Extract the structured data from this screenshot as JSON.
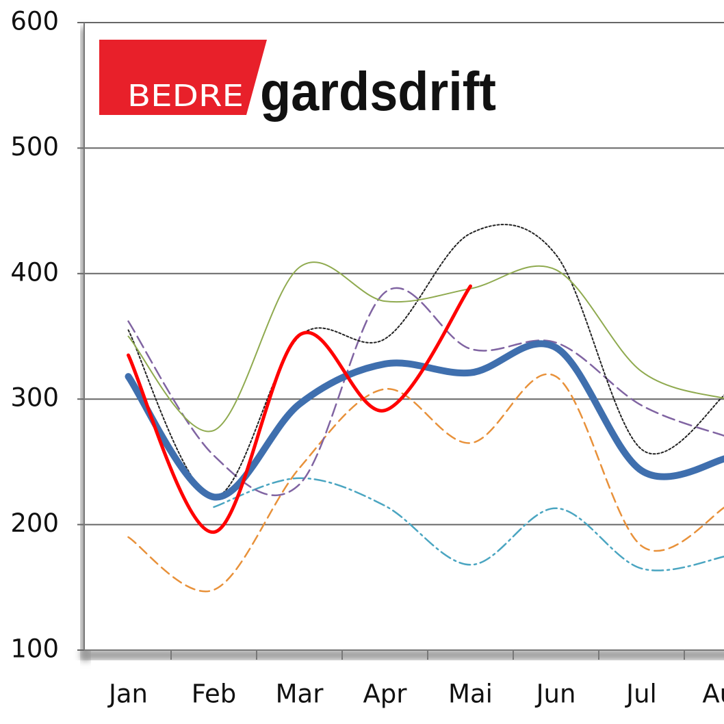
{
  "logo": {
    "left": "BEDRE",
    "right": "gardsdrift"
  },
  "chart_data": {
    "type": "line",
    "categories": [
      "Jan",
      "Feb",
      "Mar",
      "Apr",
      "Mai",
      "Jun",
      "Jul",
      "Aug"
    ],
    "ylim": [
      100,
      600
    ],
    "yticks": [
      100,
      200,
      300,
      400,
      500,
      600
    ],
    "grid": true,
    "series": [
      {
        "color": "#e8913a",
        "dash": "14,8",
        "width": 2.5,
        "values": [
          190,
          148,
          245,
          308,
          265,
          318,
          183,
          215
        ]
      },
      {
        "color": "#4aa5c1",
        "dash": "16,6,3,6",
        "width": 2.5,
        "values": [
          null,
          214,
          237,
          215,
          168,
          213,
          165,
          175
        ]
      },
      {
        "color": "#8064a2",
        "dash": "18,8",
        "width": 2.5,
        "values": [
          362,
          255,
          232,
          385,
          340,
          345,
          295,
          270
        ]
      },
      {
        "color": "#222222",
        "dash": "3,3",
        "width": 2,
        "values": [
          355,
          222,
          350,
          348,
          432,
          415,
          260,
          305
        ]
      },
      {
        "color": "#8faa4f",
        "dash": "none",
        "width": 2,
        "values": [
          350,
          275,
          405,
          378,
          388,
          403,
          322,
          300
        ]
      },
      {
        "color": "#3f6fae",
        "dash": "none",
        "width": 10,
        "values": [
          318,
          222,
          296,
          328,
          321,
          341,
          243,
          253
        ]
      },
      {
        "color": "#ff0000",
        "dash": "none",
        "width": 5,
        "values": [
          335,
          194,
          351,
          291,
          390,
          null,
          null,
          null
        ]
      }
    ]
  }
}
